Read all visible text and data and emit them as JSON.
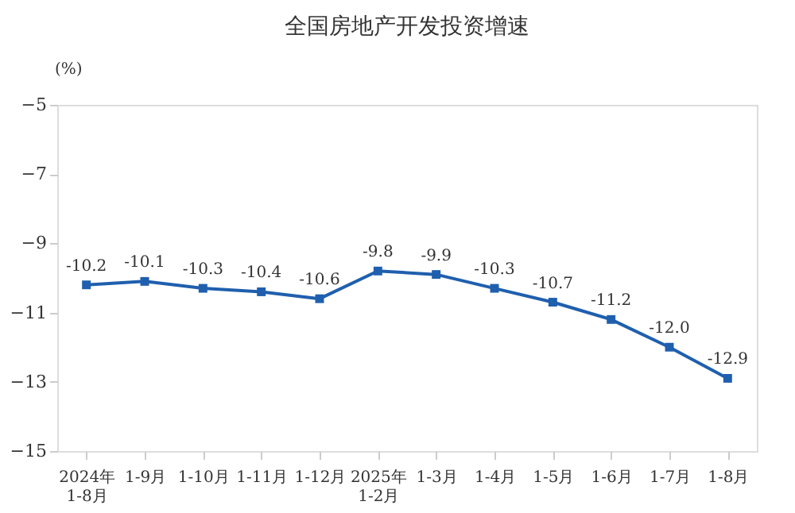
{
  "chart_data": {
    "type": "line",
    "title": "全国房地产开发投资增速",
    "ylabel": "(%)",
    "categories": [
      "2024年\n1-8月",
      "1-9月",
      "1-10月",
      "1-11月",
      "1-12月",
      "2025年\n1-2月",
      "1-3月",
      "1-4月",
      "1-5月",
      "1-6月",
      "1-7月",
      "1-8月"
    ],
    "series": [
      {
        "color": "#1f5fae",
        "values": [
          -10.2,
          -10.1,
          -10.3,
          -10.4,
          -10.6,
          -9.8,
          -9.9,
          -10.3,
          -10.7,
          -11.2,
          -12.0,
          -12.9
        ],
        "value_labels": [
          "-10.2",
          "-10.1",
          "-10.3",
          "-10.4",
          "-10.6",
          "-9.8",
          "-9.9",
          "-10.3",
          "-10.7",
          "-11.2",
          "-12.0",
          "-12.9"
        ]
      }
    ],
    "ylim": [
      -15,
      -5
    ],
    "yticks": [
      -5,
      -7,
      -9,
      -11,
      -13,
      -15
    ],
    "grid": false,
    "legend": false,
    "marker": "square",
    "line_style": "solid"
  }
}
